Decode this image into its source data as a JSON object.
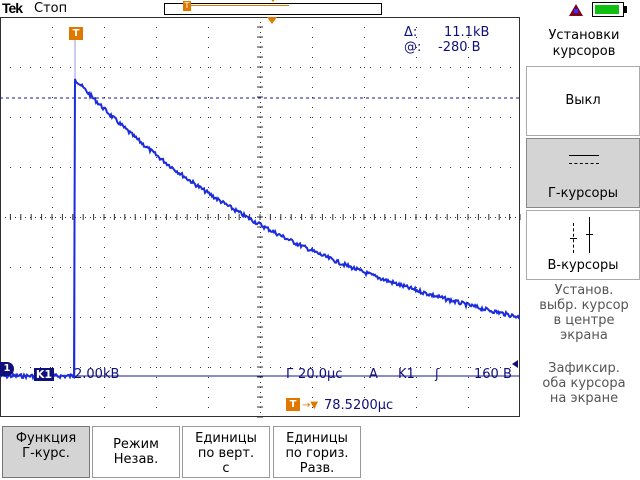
{
  "header": {
    "logo_text": "Tek",
    "run_status": "Стоп",
    "record_trigger_marker": "T"
  },
  "readouts": {
    "delta_label": "Δ:",
    "delta_value": "11.1kB",
    "at_label": "@:",
    "at_value": "-280 B"
  },
  "markers": {
    "trigger_marker": "T",
    "ground_marker": "1"
  },
  "status_bar": {
    "channel_badge": "K1",
    "channel_scale": "2.00kB",
    "timebase": "Г 20.0μс",
    "trigger_mode": "A",
    "trigger_source": "K1",
    "trigger_slope_icon": "ʃ",
    "trigger_level": "160 B",
    "trigger_position_marker": "T",
    "trigger_position_arrow": "→▼",
    "trigger_position_value": "78.5200μс"
  },
  "side_menu": {
    "title_line1": "Установки",
    "title_line2": "курсоров",
    "btn_off": "Выкл",
    "btn_h_cursors": "Г-курсоры",
    "btn_v_cursors": "В-курсоры",
    "hint_center": [
      "Установ.",
      "выбр. курсор",
      "в центре",
      "экрана"
    ],
    "hint_fix": [
      "Зафиксир.",
      "оба курсора",
      "на экране"
    ]
  },
  "softkeys": {
    "function": [
      "Функция",
      "Г-курс."
    ],
    "mode": [
      "Режим",
      "Незав."
    ],
    "vert_units": [
      "Единицы",
      "по верт.",
      "с"
    ],
    "horiz_units": [
      "Единицы",
      "по гориз.",
      "Разв."
    ]
  },
  "colors": {
    "trace": "#1c2cdc",
    "cursor_line": "#1a1a9a",
    "accent_orange": "#e07800",
    "text_blue": "#10107a",
    "grid": "#303030"
  }
}
